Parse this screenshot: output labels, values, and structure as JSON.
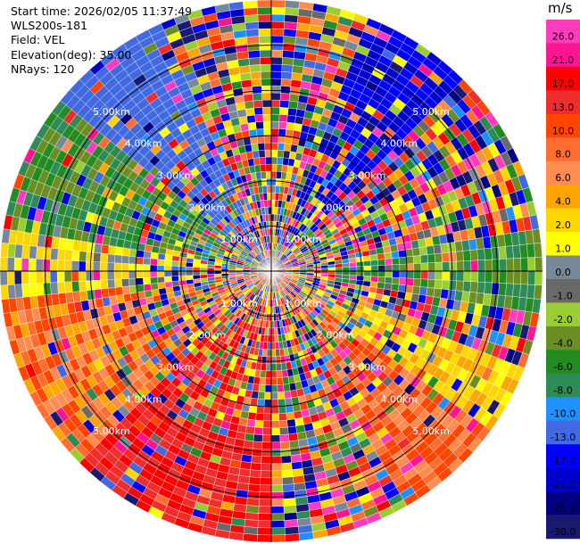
{
  "header": {
    "start_time": "Start time: 2026/02/05 11:37:49",
    "instrument": "WLS200s-181",
    "field": "Field: VEL",
    "elevation": "Elevation(deg): 35.00",
    "nrays": "NRays: 120"
  },
  "colorbar": {
    "unit": "m/s",
    "bands": [
      {
        "label": "26.0",
        "color": "#ff3cbe"
      },
      {
        "label": "21.0",
        "color": "#ff1493"
      },
      {
        "label": "17.0",
        "color": "#ff0000"
      },
      {
        "label": "13.0",
        "color": "#f02d2d"
      },
      {
        "label": "10.0",
        "color": "#ff4500"
      },
      {
        "label": "8.0",
        "color": "#ff6e30"
      },
      {
        "label": "6.0",
        "color": "#ff8c50"
      },
      {
        "label": "4.0",
        "color": "#ffa500"
      },
      {
        "label": "2.0",
        "color": "#ffd700"
      },
      {
        "label": "1.0",
        "color": "#ffff00"
      },
      {
        "label": "0.0",
        "color": "#778899"
      },
      {
        "label": "-1.0",
        "color": "#696969"
      },
      {
        "label": "-2.0",
        "color": "#9acd32"
      },
      {
        "label": "-4.0",
        "color": "#6b8e23"
      },
      {
        "label": "-6.0",
        "color": "#228b22"
      },
      {
        "label": "-8.0",
        "color": "#2e8b57"
      },
      {
        "label": "-10.0",
        "color": "#1e90ff"
      },
      {
        "label": "-13.0",
        "color": "#4169e1"
      },
      {
        "label": "-17.0",
        "color": "#0000ff"
      },
      {
        "label": "-21.0",
        "color": "#0000cd"
      },
      {
        "label": "-26.0",
        "color": "#000080"
      },
      {
        "label": "-30.0",
        "color": "#191970"
      }
    ]
  },
  "chart_data": {
    "type": "heatmap",
    "projection": "polar (PPI)",
    "field": "VEL",
    "unit": "m/s",
    "elevation_deg": 35.0,
    "nrays": 120,
    "max_range_km": 6.0,
    "range_rings_km": [
      1,
      2,
      3,
      4,
      5
    ],
    "ring_labels": [
      "1.00km",
      "2.00km",
      "3.00km",
      "4.00km",
      "5.00km"
    ],
    "sector_patterns": [
      {
        "az_from": 0,
        "az_to": 40,
        "dominant": "mixed multicolor (noise)"
      },
      {
        "az_from": 20,
        "az_to": 45,
        "dominant_velocity_range": [
          -21.0,
          -13.0
        ]
      },
      {
        "az_from": 80,
        "az_to": 100,
        "dominant_velocity_range": [
          -8.0,
          -1.0
        ]
      },
      {
        "az_from": 110,
        "az_to": 130,
        "dominant_velocity_range": [
          1.0,
          6.0
        ]
      },
      {
        "az_from": 125,
        "az_to": 150,
        "dominant_velocity_range": [
          6.0,
          13.0
        ]
      },
      {
        "az_from": 180,
        "az_to": 225,
        "dominant_velocity_range": [
          13.0,
          21.0
        ]
      },
      {
        "az_from": 225,
        "az_to": 265,
        "dominant_velocity_range": [
          4.0,
          13.0
        ]
      },
      {
        "az_from": 265,
        "az_to": 280,
        "dominant_velocity_range": [
          0.0,
          4.0
        ]
      },
      {
        "az_from": 280,
        "az_to": 310,
        "dominant_velocity_range": [
          -8.0,
          -2.0
        ]
      },
      {
        "az_from": 310,
        "az_to": 335,
        "dominant_velocity_range": [
          -13.0,
          -10.0
        ]
      }
    ]
  }
}
